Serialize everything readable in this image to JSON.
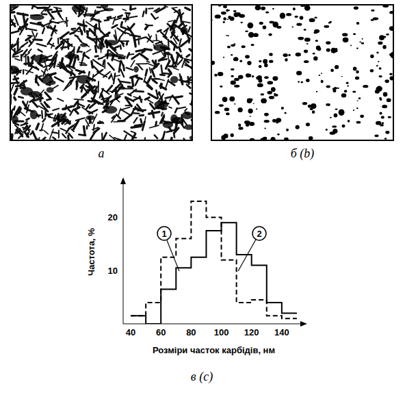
{
  "images": [
    {
      "label": "а"
    },
    {
      "label": "б (b)"
    }
  ],
  "chart_data": {
    "type": "histogram",
    "bins": [
      40,
      50,
      60,
      70,
      80,
      90,
      100,
      110,
      120,
      130,
      140,
      150
    ],
    "xlabel": "Розміри часток карбідів, нм",
    "ylabel": "Частота, %",
    "xlim": [
      35,
      155
    ],
    "xticks": [
      40,
      60,
      80,
      100,
      120,
      140
    ],
    "ylim": [
      0,
      27
    ],
    "yticks": [
      10,
      20
    ],
    "grid": false,
    "series": [
      {
        "name": "1",
        "color": "#000000",
        "line_style": "solid",
        "values": [
          1.5,
          0,
          6.5,
          10.5,
          12.5,
          17.5,
          19,
          13,
          11,
          4,
          2
        ]
      },
      {
        "name": "2",
        "color": "#000000",
        "line_style": "dashed",
        "values": [
          1.5,
          4,
          12.5,
          16,
          23,
          20,
          12,
          4,
          4.5,
          1.5,
          1
        ]
      }
    ]
  },
  "caption": "в (c)"
}
